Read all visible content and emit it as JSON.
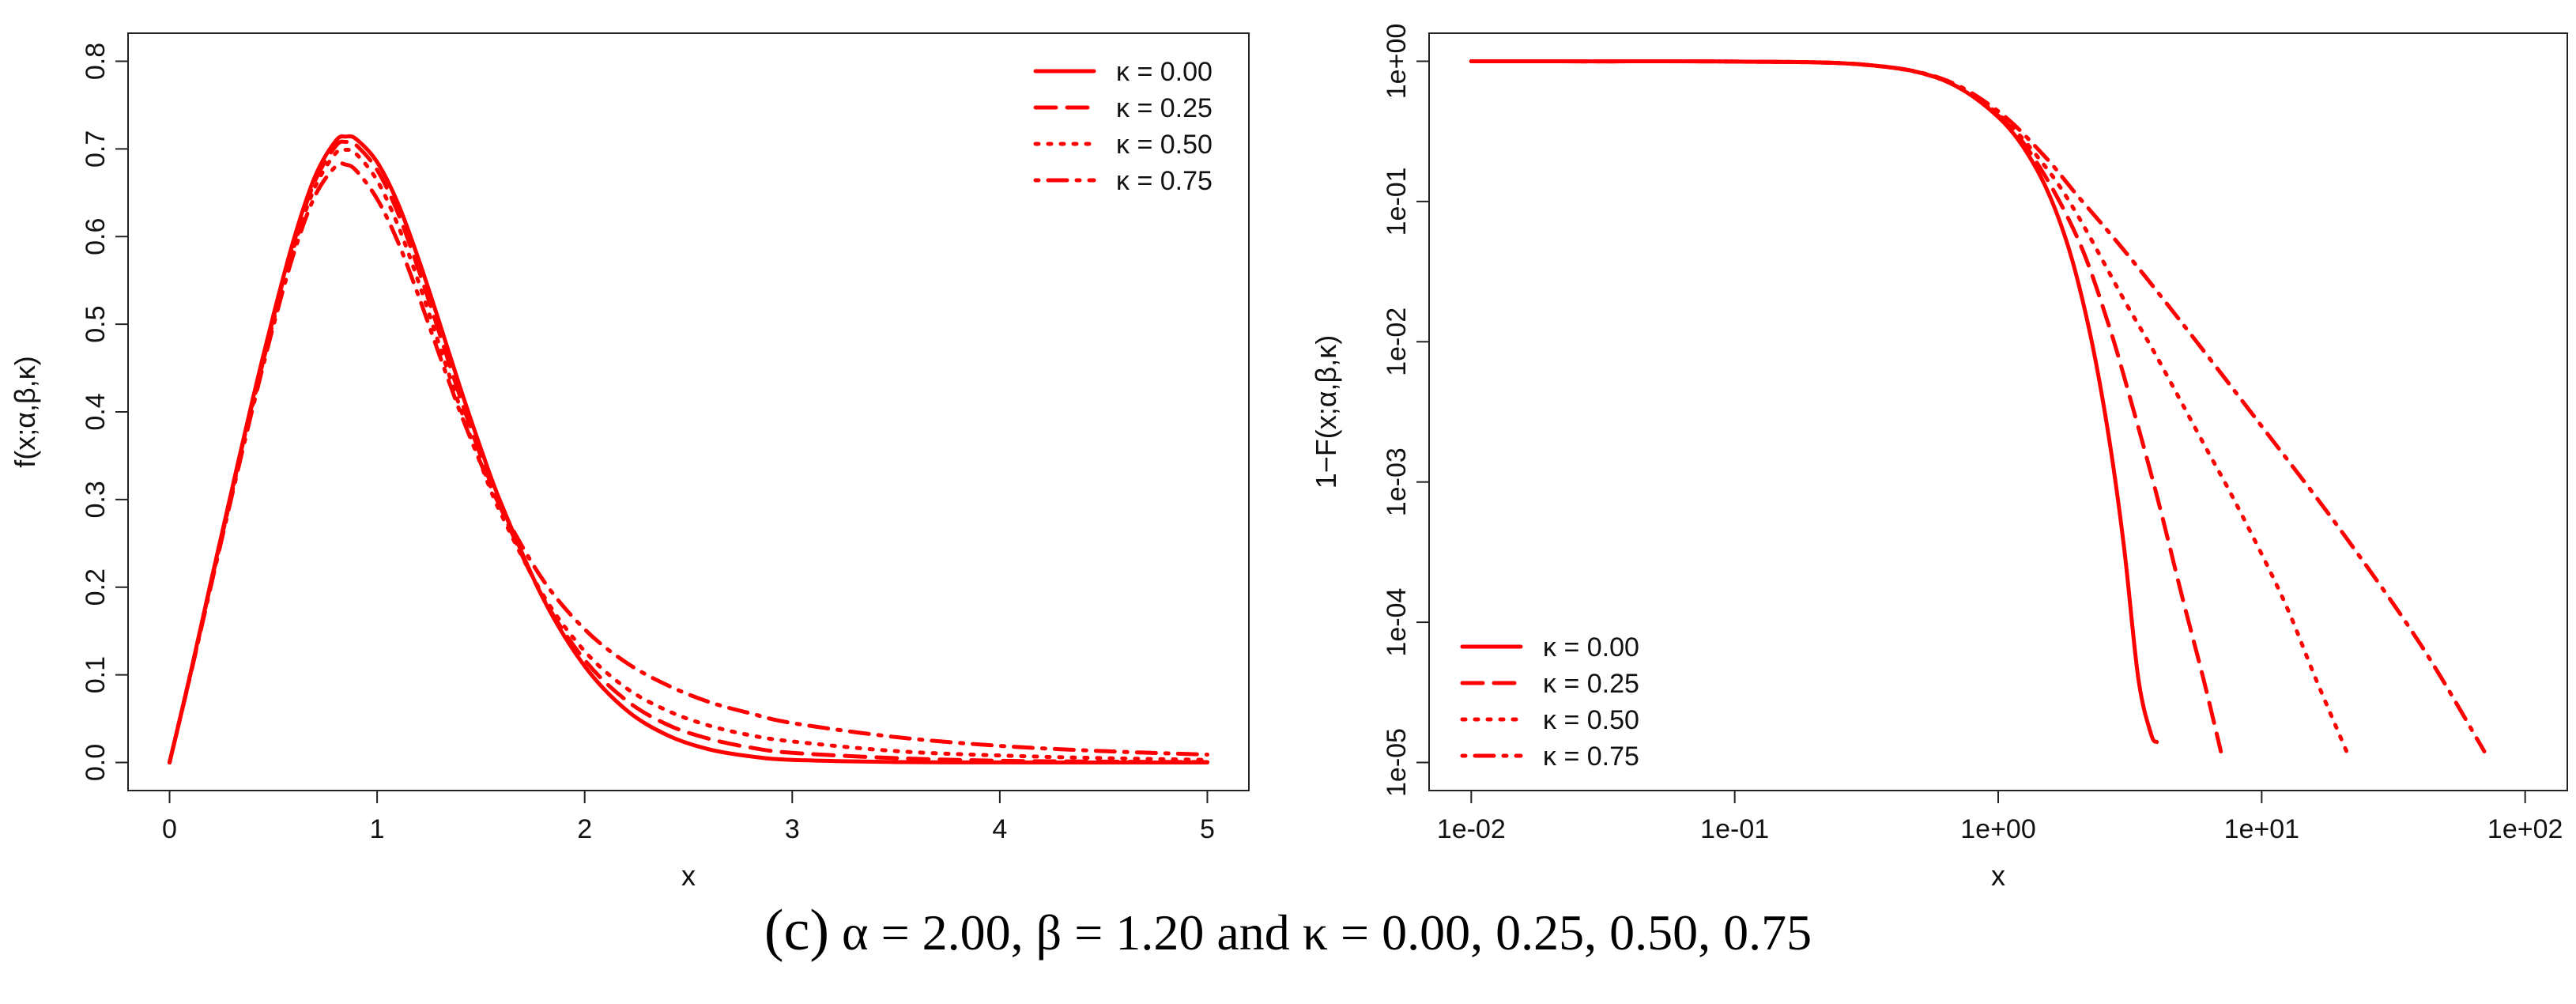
{
  "chart_data": [
    {
      "type": "line",
      "xlabel": "x",
      "ylabel": "f(x;α,β,κ)",
      "xlim": [
        0,
        5
      ],
      "ylim": [
        0,
        0.8
      ],
      "x_scale": "linear",
      "y_scale": "linear",
      "grid": false,
      "legend_position": "top-right",
      "x_ticks": [
        "0",
        "1",
        "2",
        "3",
        "4",
        "5"
      ],
      "y_ticks": [
        "0.0",
        "0.1",
        "0.2",
        "0.3",
        "0.4",
        "0.5",
        "0.6",
        "0.7",
        "0.8"
      ],
      "series": [
        {
          "name": "κ = 0.00",
          "style": "solid",
          "color": "#ff0000",
          "x": [
            0,
            0.1,
            0.2,
            0.3,
            0.4,
            0.5,
            0.6,
            0.7,
            0.8,
            0.85,
            0.9,
            1.0,
            1.1,
            1.2,
            1.3,
            1.4,
            1.5,
            1.6,
            1.8,
            2.0,
            2.2,
            2.4,
            2.6,
            2.8,
            3.0,
            3.5,
            4.0,
            4.5,
            5.0
          ],
          "y": [
            0,
            0.101,
            0.207,
            0.311,
            0.414,
            0.51,
            0.598,
            0.668,
            0.709,
            0.714,
            0.711,
            0.685,
            0.638,
            0.574,
            0.502,
            0.428,
            0.358,
            0.294,
            0.187,
            0.11,
            0.06,
            0.031,
            0.015,
            0.007,
            0.003,
            0.0005,
            0.0001,
            0.0,
            0.0
          ]
        },
        {
          "name": "κ = 0.25",
          "style": "dashed",
          "color": "#ff0000",
          "x": [
            0,
            0.1,
            0.2,
            0.3,
            0.4,
            0.5,
            0.6,
            0.7,
            0.8,
            0.85,
            0.9,
            1.0,
            1.1,
            1.2,
            1.3,
            1.4,
            1.5,
            1.6,
            1.8,
            2.0,
            2.2,
            2.4,
            2.6,
            2.8,
            3.0,
            3.5,
            4.0,
            4.5,
            5.0
          ],
          "y": [
            0,
            0.1,
            0.205,
            0.309,
            0.411,
            0.507,
            0.594,
            0.663,
            0.703,
            0.708,
            0.704,
            0.676,
            0.627,
            0.562,
            0.49,
            0.417,
            0.349,
            0.288,
            0.188,
            0.117,
            0.071,
            0.043,
            0.027,
            0.017,
            0.011,
            0.005,
            0.002,
            0.001,
            0.0005
          ]
        },
        {
          "name": "κ = 0.50",
          "style": "dotted",
          "color": "#ff0000",
          "x": [
            0,
            0.1,
            0.2,
            0.3,
            0.4,
            0.5,
            0.6,
            0.7,
            0.8,
            0.85,
            0.9,
            1.0,
            1.1,
            1.2,
            1.3,
            1.4,
            1.5,
            1.6,
            1.8,
            2.0,
            2.2,
            2.4,
            2.6,
            2.8,
            3.0,
            3.5,
            4.0,
            4.5,
            5.0
          ],
          "y": [
            0,
            0.1,
            0.204,
            0.307,
            0.408,
            0.503,
            0.589,
            0.656,
            0.695,
            0.699,
            0.694,
            0.664,
            0.613,
            0.548,
            0.476,
            0.405,
            0.34,
            0.282,
            0.191,
            0.127,
            0.085,
            0.059,
            0.042,
            0.031,
            0.024,
            0.013,
            0.008,
            0.005,
            0.003
          ]
        },
        {
          "name": "κ = 0.75",
          "style": "dotdash",
          "color": "#ff0000",
          "x": [
            0,
            0.1,
            0.2,
            0.3,
            0.4,
            0.5,
            0.6,
            0.7,
            0.8,
            0.85,
            0.9,
            1.0,
            1.1,
            1.2,
            1.3,
            1.4,
            1.5,
            1.6,
            1.8,
            2.0,
            2.2,
            2.4,
            2.6,
            2.8,
            3.0,
            3.5,
            4.0,
            4.5,
            5.0
          ],
          "y": [
            0,
            0.099,
            0.202,
            0.304,
            0.404,
            0.498,
            0.582,
            0.646,
            0.68,
            0.682,
            0.675,
            0.643,
            0.594,
            0.532,
            0.465,
            0.4,
            0.341,
            0.289,
            0.208,
            0.152,
            0.114,
            0.088,
            0.069,
            0.056,
            0.045,
            0.029,
            0.019,
            0.013,
            0.009
          ]
        }
      ]
    },
    {
      "type": "line",
      "xlabel": "x",
      "ylabel": "1−F(x;α,β,κ)",
      "xlim": [
        0.01,
        100
      ],
      "ylim": [
        1e-05,
        1
      ],
      "x_scale": "log",
      "y_scale": "log",
      "grid": false,
      "legend_position": "bottom-left",
      "x_ticks": [
        "1e-02",
        "1e-01",
        "1e+00",
        "1e+01",
        "1e+02"
      ],
      "y_ticks": [
        "1e-05",
        "1e-04",
        "1e-03",
        "1e-02",
        "1e-01",
        "1e+00"
      ],
      "series": [
        {
          "name": "κ = 0.00",
          "style": "solid",
          "color": "#ff0000",
          "x": [
            0.01,
            0.03,
            0.1,
            0.3,
            0.6,
            1.0,
            1.4,
            1.8,
            2.2,
            2.6,
            3.0,
            3.4,
            3.8,
            4.0
          ],
          "y": [
            1.0,
            0.999,
            0.995,
            0.95,
            0.75,
            0.4,
            0.17,
            0.055,
            0.013,
            0.0024,
            0.00035,
            4e-05,
            1.6e-05,
            1.4e-05
          ]
        },
        {
          "name": "κ = 0.25",
          "style": "dashed",
          "color": "#ff0000",
          "x": [
            0.01,
            0.03,
            0.1,
            0.3,
            0.6,
            1.0,
            1.4,
            2.0,
            2.6,
            3.2,
            4.0,
            5.0,
            6.0,
            7.0
          ],
          "y": [
            1.0,
            0.999,
            0.995,
            0.95,
            0.75,
            0.41,
            0.19,
            0.055,
            0.014,
            0.0037,
            0.0008,
            0.00015,
            4e-05,
            1.2e-05
          ]
        },
        {
          "name": "κ = 0.50",
          "style": "dotted",
          "color": "#ff0000",
          "x": [
            0.01,
            0.03,
            0.1,
            0.3,
            0.6,
            1.0,
            1.5,
            2.0,
            3.0,
            4.0,
            6.0,
            8.0,
            12.0,
            16.0,
            21.0
          ],
          "y": [
            1.0,
            0.999,
            0.995,
            0.95,
            0.75,
            0.42,
            0.18,
            0.08,
            0.02,
            0.0078,
            0.0019,
            0.0007,
            0.00015,
            4e-05,
            1.2e-05
          ]
        },
        {
          "name": "κ = 0.75",
          "style": "dotdash",
          "color": "#ff0000",
          "x": [
            0.01,
            0.03,
            0.1,
            0.3,
            0.6,
            1.0,
            1.5,
            2.0,
            3.0,
            5.0,
            10.0,
            20.0,
            40.0,
            70.0
          ],
          "y": [
            1.0,
            0.999,
            0.995,
            0.95,
            0.76,
            0.44,
            0.21,
            0.11,
            0.045,
            0.0135,
            0.0025,
            0.00045,
            7e-05,
            1.2e-05
          ]
        }
      ]
    }
  ],
  "caption": {
    "label": "(c)",
    "text": "α = 2.00, β = 1.20 and κ = 0.00, 0.25, 0.50, 0.75"
  }
}
